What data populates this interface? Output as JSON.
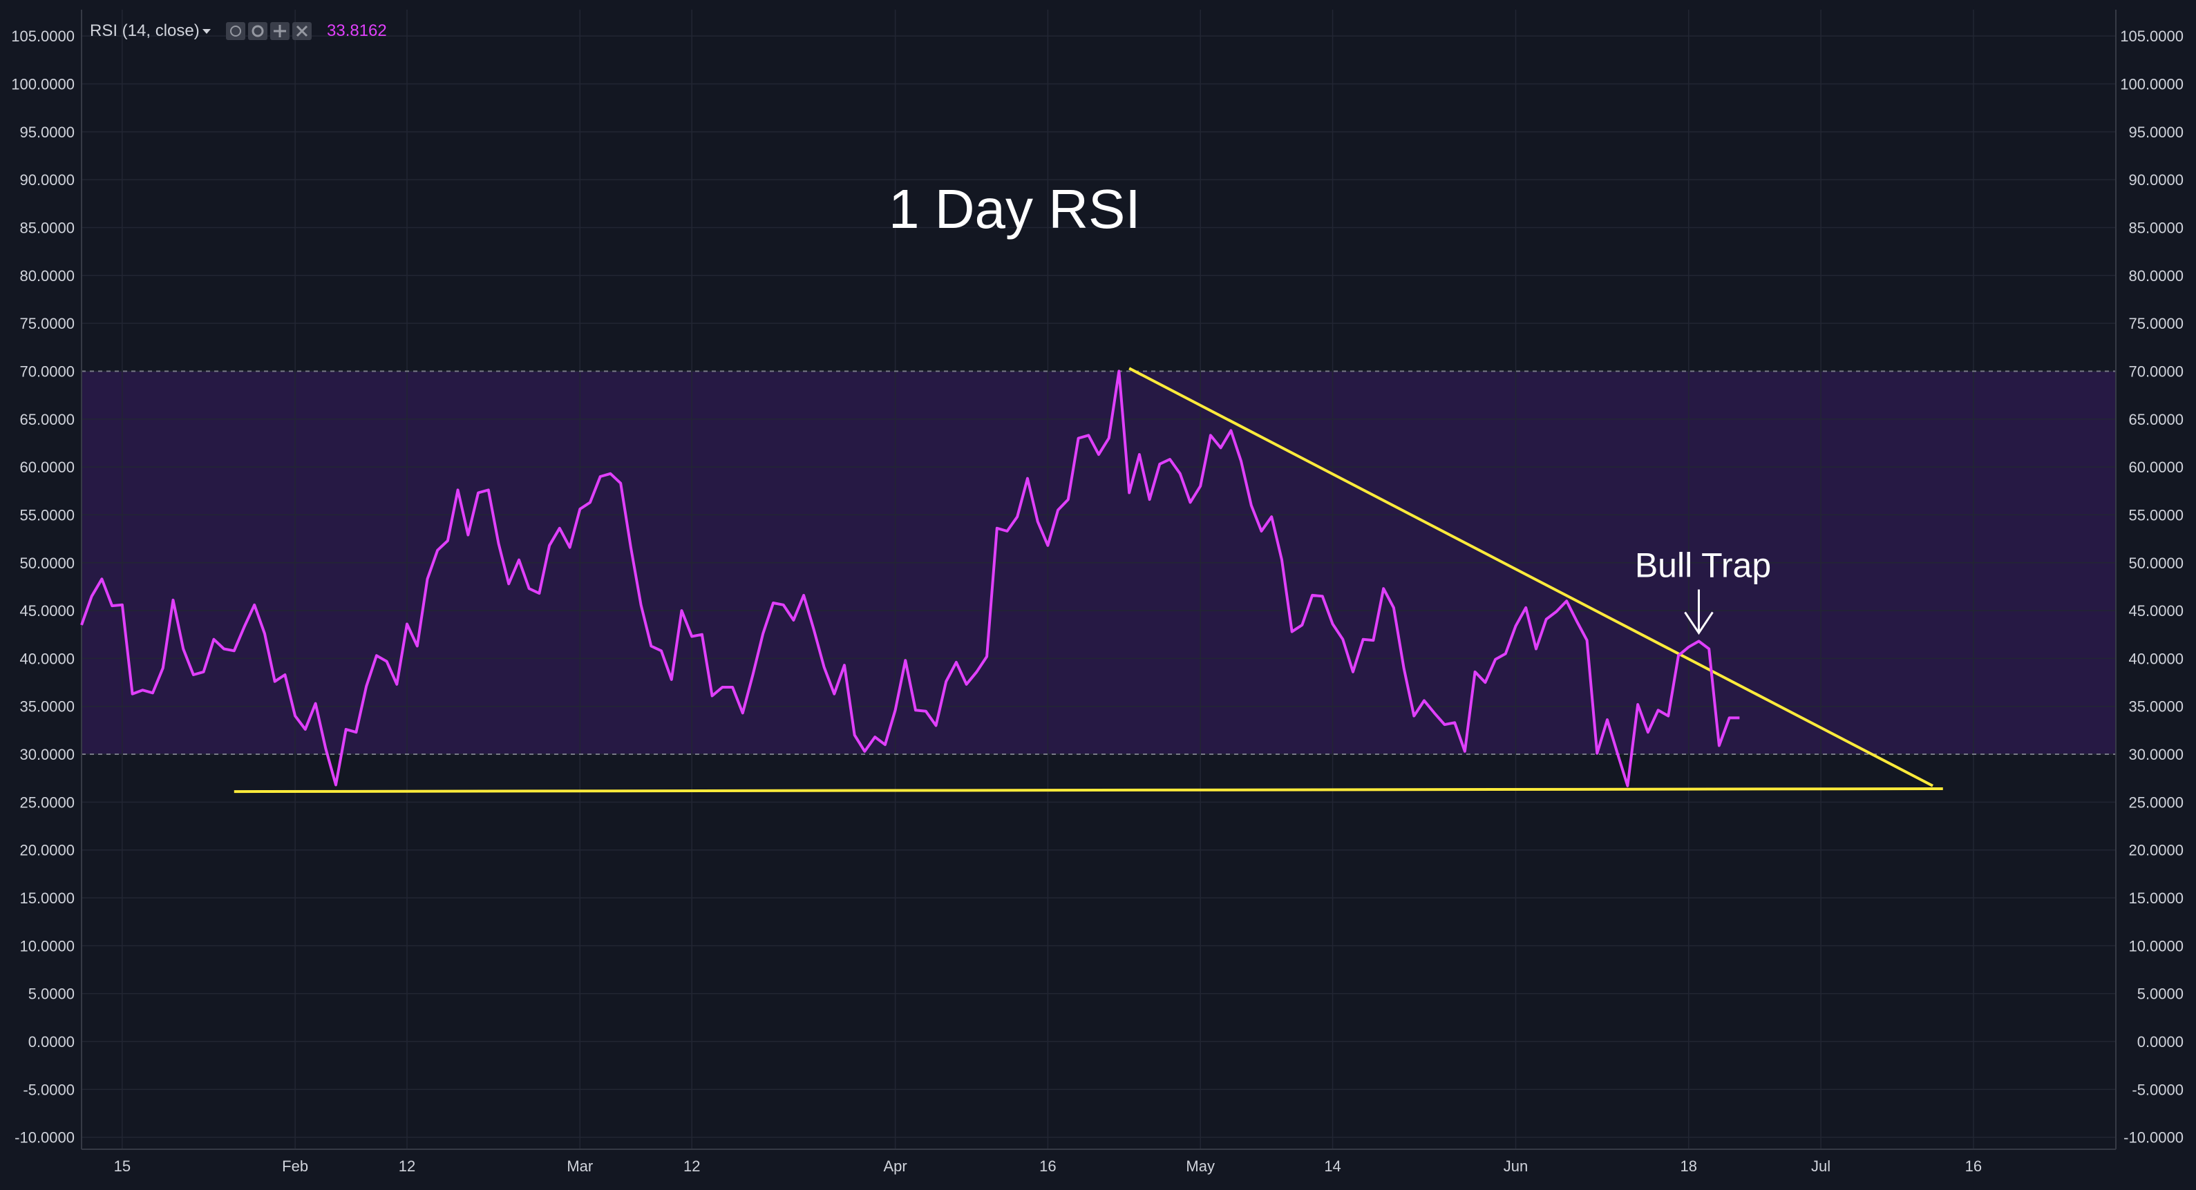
{
  "legend": {
    "indicator": "RSI (14, close)",
    "value": "33.8162",
    "value_color": "#e040fb"
  },
  "chart_data": {
    "type": "line",
    "title": "1 Day RSI",
    "xlabel": "",
    "ylabel": "",
    "ylim": [
      -10,
      105
    ],
    "y_ticks": [
      "105.0000",
      "100.0000",
      "95.0000",
      "90.0000",
      "85.0000",
      "80.0000",
      "75.0000",
      "70.0000",
      "65.0000",
      "60.0000",
      "55.0000",
      "50.0000",
      "45.0000",
      "40.0000",
      "35.0000",
      "30.0000",
      "25.0000",
      "20.0000",
      "15.0000",
      "10.0000",
      "5.0000",
      "0.0000",
      "-5.0000",
      "-10.0000"
    ],
    "x_ticks": [
      {
        "label": "15",
        "date": "2018-01-15"
      },
      {
        "label": "Feb",
        "date": "2018-02-01"
      },
      {
        "label": "12",
        "date": "2018-02-12"
      },
      {
        "label": "Mar",
        "date": "2018-03-01"
      },
      {
        "label": "12",
        "date": "2018-03-12"
      },
      {
        "label": "Apr",
        "date": "2018-04-01"
      },
      {
        "label": "16",
        "date": "2018-04-16"
      },
      {
        "label": "May",
        "date": "2018-05-01"
      },
      {
        "label": "14",
        "date": "2018-05-14"
      },
      {
        "label": "Jun",
        "date": "2018-06-01"
      },
      {
        "label": "18",
        "date": "2018-06-18"
      },
      {
        "label": "Jul",
        "date": "2018-07-01"
      },
      {
        "label": "16",
        "date": "2018-07-16"
      }
    ],
    "x_range": [
      "2018-01-11",
      "2018-07-30"
    ],
    "overbought": 70,
    "oversold": 30,
    "band_color": "#2a1a4a",
    "grid": true,
    "series": [
      {
        "color": "#e040fb",
        "start_date": "2018-01-11",
        "values": [
          43.5,
          46.5,
          48.3,
          45.5,
          45.6,
          36.3,
          36.7,
          36.4,
          39.0,
          46.1,
          41.0,
          38.3,
          38.6,
          42.0,
          41.0,
          40.8,
          43.3,
          45.6,
          42.6,
          37.6,
          38.3,
          34.0,
          32.6,
          35.3,
          30.6,
          26.8,
          32.6,
          32.3,
          37.1,
          40.3,
          39.7,
          37.3,
          43.6,
          41.3,
          48.3,
          51.3,
          52.3,
          57.6,
          52.9,
          57.3,
          57.6,
          52.0,
          47.8,
          50.3,
          47.3,
          46.8,
          51.8,
          53.6,
          51.6,
          55.6,
          56.3,
          59.0,
          59.3,
          58.3,
          51.6,
          45.6,
          41.3,
          40.8,
          37.8,
          45.0,
          42.3,
          42.5,
          36.1,
          37.0,
          37.0,
          34.3,
          38.3,
          42.6,
          45.8,
          45.6,
          44.0,
          46.6,
          43.0,
          39.1,
          36.3,
          39.3,
          32.0,
          30.3,
          31.8,
          31.0,
          34.6,
          39.8,
          34.6,
          34.5,
          33.0,
          37.6,
          39.6,
          37.3,
          38.6,
          40.2,
          53.6,
          53.3,
          54.8,
          58.8,
          54.3,
          51.8,
          55.5,
          56.6,
          63.0,
          63.3,
          61.3,
          63.0,
          70.0,
          57.3,
          61.3,
          56.6,
          60.3,
          60.8,
          59.3,
          56.3,
          58.0,
          63.3,
          62.0,
          63.8,
          60.6,
          56.0,
          53.3,
          54.8,
          50.3,
          42.8,
          43.5,
          46.6,
          46.5,
          43.6,
          42.0,
          38.6,
          42.0,
          41.9,
          47.3,
          45.3,
          39.0,
          34.0,
          35.6,
          34.3,
          33.1,
          33.3,
          30.3,
          38.6,
          37.5,
          39.9,
          40.5,
          43.4,
          45.3,
          41.0,
          44.1,
          44.9,
          46.0,
          43.9,
          41.9,
          30.1,
          33.6,
          30.1,
          26.7,
          35.2,
          32.3,
          34.6,
          34.0,
          40.3,
          41.2,
          41.8,
          41.0,
          30.9,
          33.8,
          33.8
        ]
      }
    ],
    "trendlines": [
      {
        "color": "#ffeb3b",
        "from": {
          "date": "2018-04-24",
          "value": 70.3
        },
        "to": {
          "date": "2018-07-12",
          "value": 26.7
        }
      },
      {
        "color": "#ffeb3b",
        "from": {
          "date": "2018-01-26",
          "value": 26.1
        },
        "to": {
          "date": "2018-07-13",
          "value": 26.4
        }
      }
    ],
    "annotations": [
      {
        "text": "Bull Trap",
        "date": "2018-06-19",
        "value": 41.8
      }
    ]
  }
}
